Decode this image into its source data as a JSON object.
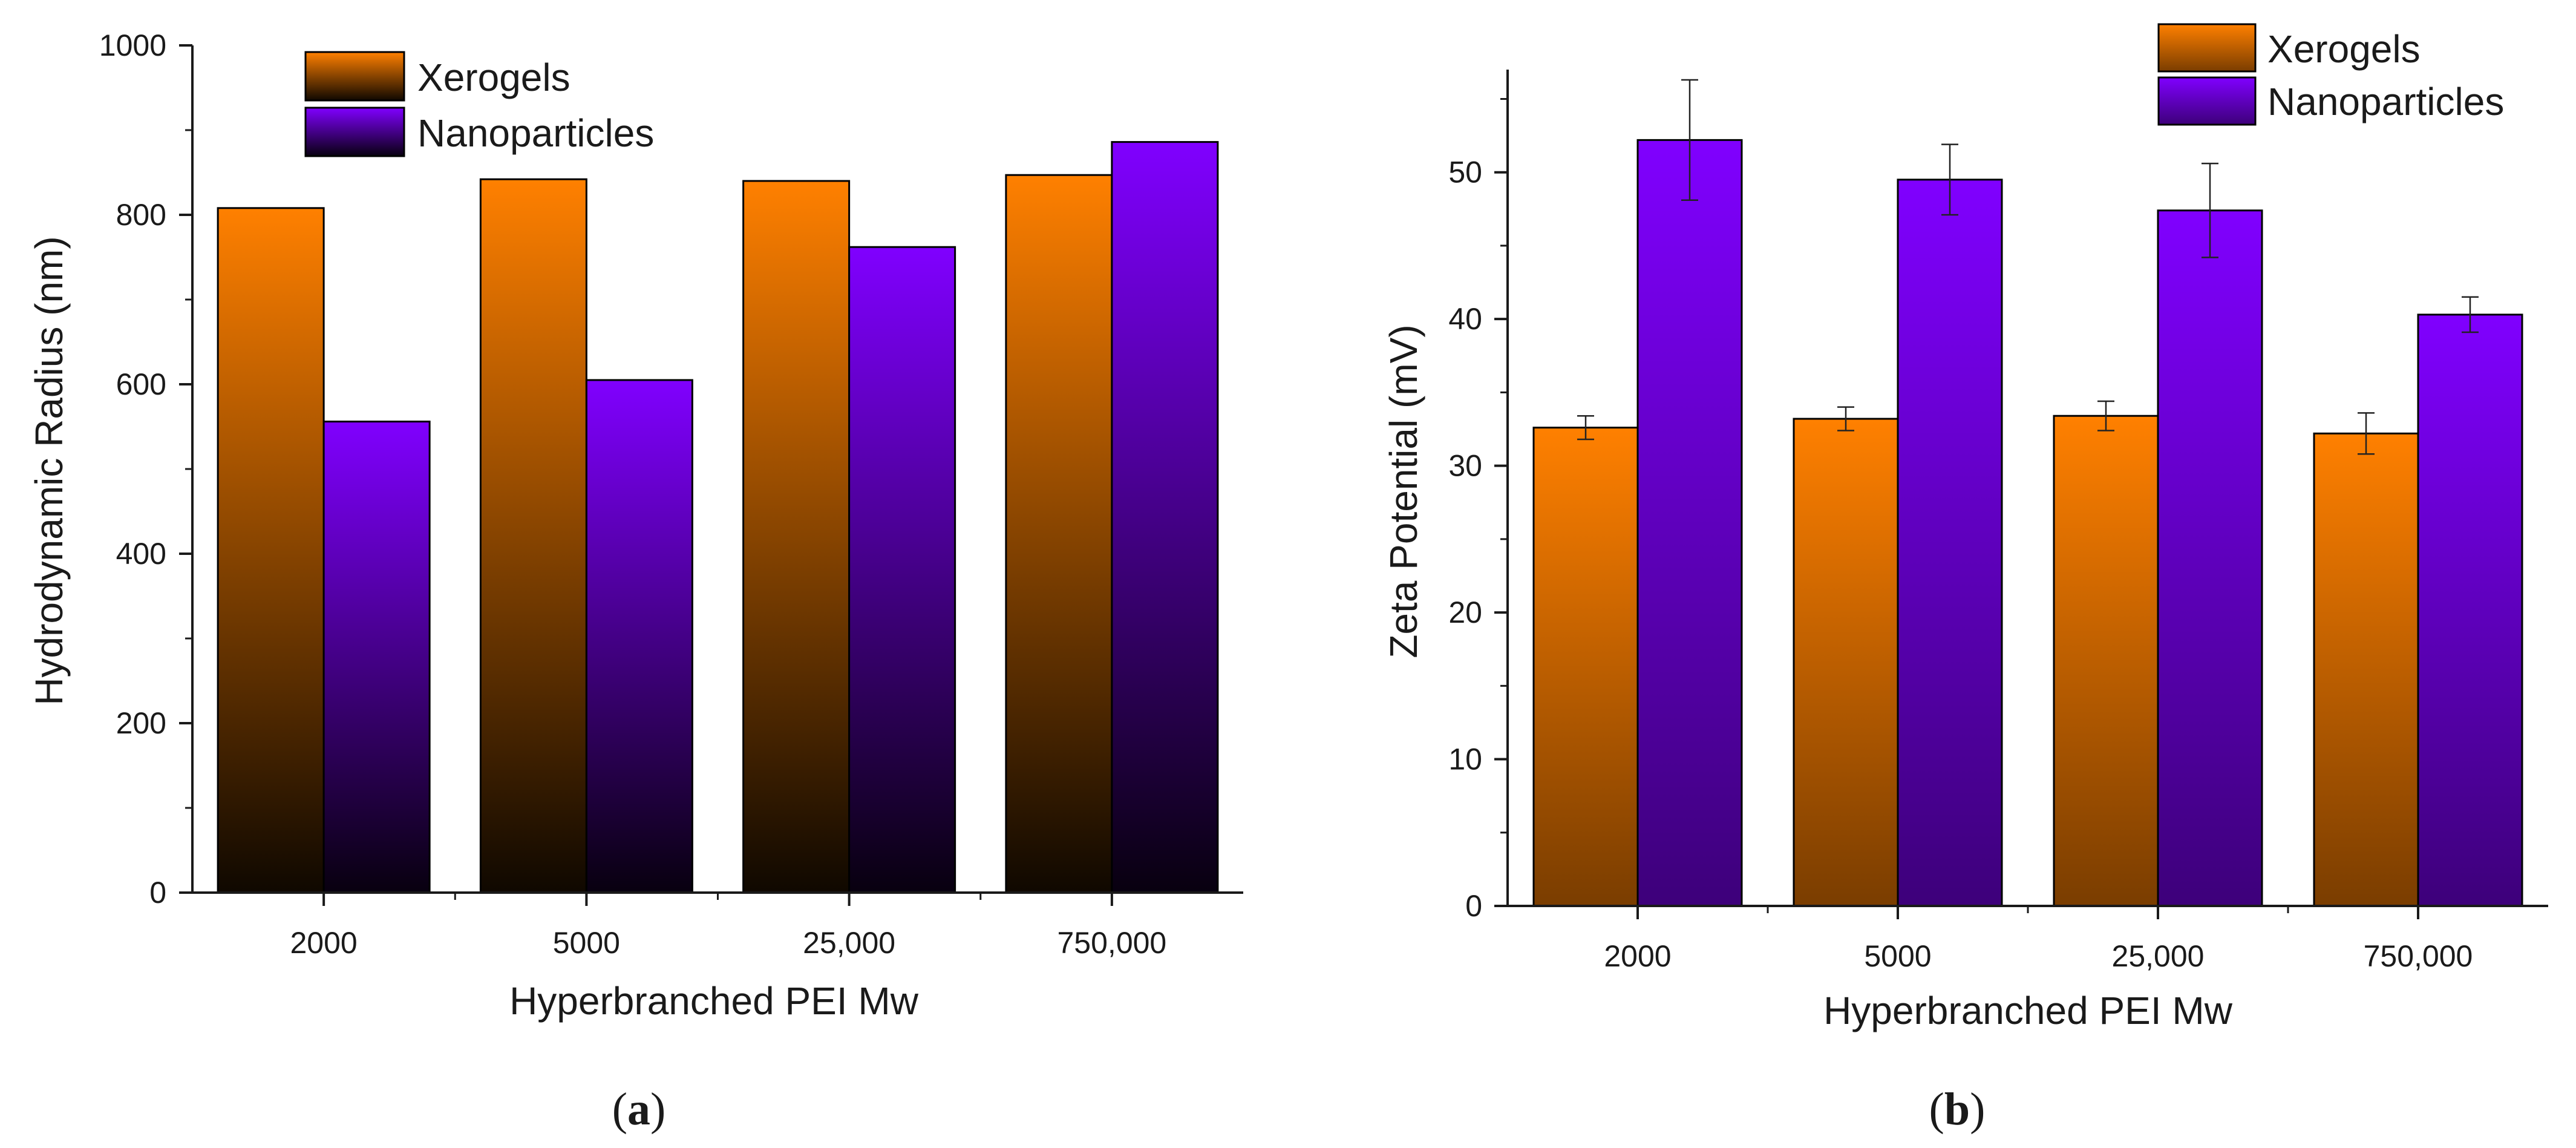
{
  "colors": {
    "xerogels_top": "#ff8000",
    "xerogels_bottom": "#0f0800",
    "nanoparticles_top": "#8000ff",
    "nanoparticles_bottom": "#08000f",
    "xerogels_top_b": "#ff8000",
    "xerogels_bottom_b": "#7a3d00",
    "nanoparticles_top_b": "#8000ff",
    "nanoparticles_bottom_b": "#3d007a",
    "axis": "#1a1a1a"
  },
  "chart_data": [
    {
      "id": "a",
      "type": "bar",
      "categories": [
        "2000",
        "5000",
        "25,000",
        "750,000"
      ],
      "series": [
        {
          "name": "Xerogels",
          "values": [
            808,
            842,
            840,
            847
          ]
        },
        {
          "name": "Nanoparticles",
          "values": [
            556,
            605,
            762,
            886
          ]
        }
      ],
      "xlabel": "Hyperbranched PEI Mw",
      "ylabel": "Hydrodynamic Radius (nm)",
      "ylim": [
        0,
        1000
      ],
      "yticks": [
        0,
        200,
        400,
        600,
        800,
        1000
      ],
      "legend": "top-left",
      "panel_label": "a",
      "panel_label_parts": [
        "(",
        "a",
        ")"
      ]
    },
    {
      "id": "b",
      "type": "bar",
      "categories": [
        "2000",
        "5000",
        "25,000",
        "750,000"
      ],
      "series": [
        {
          "name": "Xerogels",
          "values": [
            32.6,
            33.2,
            33.4,
            32.2
          ],
          "errors": [
            0.8,
            0.8,
            1.0,
            1.4
          ]
        },
        {
          "name": "Nanoparticles",
          "values": [
            52.2,
            49.5,
            47.4,
            40.3
          ],
          "errors": [
            4.1,
            2.4,
            3.2,
            1.2
          ]
        }
      ],
      "xlabel": "Hyperbranched PEI Mw",
      "ylabel": "Zeta Potential (mV)",
      "ylim": [
        0,
        57
      ],
      "yticks": [
        0,
        10,
        20,
        30,
        40,
        50
      ],
      "legend": "top-right",
      "panel_label": "b",
      "panel_label_parts": [
        "(",
        "b",
        ")"
      ]
    }
  ]
}
